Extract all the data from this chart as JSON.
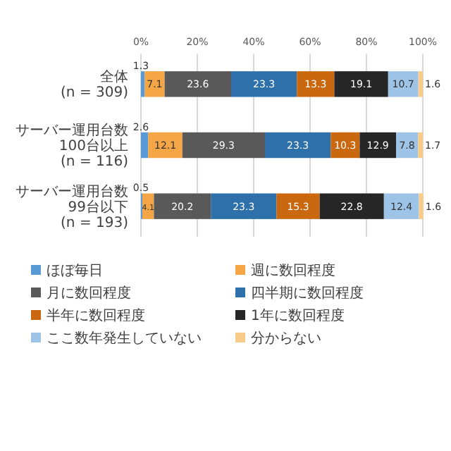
{
  "chart_data": {
    "type": "bar",
    "orientation": "horizontal",
    "stacked": true,
    "data_labels": true,
    "grid": "x",
    "legend": "bottom",
    "categories": [
      "全体\n(n = 309)",
      "サーバー運用台数\n100台以上\n(n = 116)",
      "サーバー運用台数\n99台以下\n(n = 193)"
    ],
    "xlim": [
      0,
      101
    ],
    "xticks": [
      {
        "value": 0,
        "label": "0%"
      },
      {
        "value": 20,
        "label": "20%"
      },
      {
        "value": 40,
        "label": "40%"
      },
      {
        "value": 60,
        "label": "60%"
      },
      {
        "value": 80,
        "label": "80%"
      },
      {
        "value": 100,
        "label": "100%"
      }
    ],
    "series": [
      {
        "name": "ほぼ毎日",
        "color": "#5b9bd5",
        "values": [
          1.3,
          2.6,
          0.5
        ]
      },
      {
        "name": "週に数回程度",
        "color": "#f4a545",
        "values": [
          7.1,
          12.1,
          4.1
        ]
      },
      {
        "name": "月に数回程度",
        "color": "#595959",
        "values": [
          23.6,
          29.3,
          20.2
        ]
      },
      {
        "name": "四半期に数回程度",
        "color": "#2e70aa",
        "values": [
          23.3,
          23.3,
          23.3
        ]
      },
      {
        "name": "半年に数回程度",
        "color": "#c9680f",
        "values": [
          13.3,
          10.3,
          15.3
        ]
      },
      {
        "name": "1年に数回程度",
        "color": "#262626",
        "values": [
          19.1,
          12.9,
          22.8
        ]
      },
      {
        "name": "ここ数年発生していない",
        "color": "#9dc3e6",
        "values": [
          10.7,
          7.8,
          12.4
        ]
      },
      {
        "name": "分からない",
        "color": "#f8cb8a",
        "values": [
          1.6,
          1.7,
          1.6
        ]
      }
    ]
  }
}
